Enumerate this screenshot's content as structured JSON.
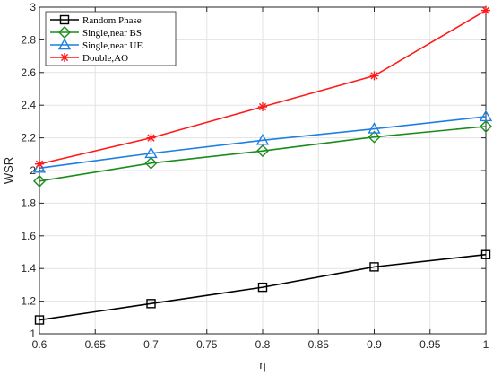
{
  "chart_data": {
    "type": "line",
    "title": "",
    "xlabel": "η",
    "ylabel": "WSR",
    "x": [
      0.6,
      0.7,
      0.8,
      0.9,
      1.0
    ],
    "xlim": [
      0.6,
      1.0
    ],
    "ylim": [
      1.0,
      3.0
    ],
    "x_ticks": [
      "0.6",
      "0.65",
      "0.7",
      "0.75",
      "0.8",
      "0.85",
      "0.9",
      "0.95",
      "1"
    ],
    "y_ticks": [
      "1",
      "1.2",
      "1.4",
      "1.6",
      "1.8",
      "2",
      "2.2",
      "2.4",
      "2.6",
      "2.8",
      "3"
    ],
    "grid": true,
    "legend_position": "top-left",
    "series": [
      {
        "name": "Random Phase",
        "color": "#000000",
        "marker": "square",
        "values": [
          1.085,
          1.185,
          1.285,
          1.41,
          1.485
        ]
      },
      {
        "name": "Single,near BS",
        "color": "#1a8c1a",
        "marker": "diamond",
        "values": [
          1.935,
          2.045,
          2.12,
          2.205,
          2.27
        ]
      },
      {
        "name": "Single,near UE",
        "color": "#1f7fe0",
        "marker": "triangle",
        "values": [
          2.015,
          2.105,
          2.185,
          2.255,
          2.33
        ]
      },
      {
        "name": "Double,AO",
        "color": "#ff1a1a",
        "marker": "asterisk",
        "values": [
          2.04,
          2.2,
          2.39,
          2.58,
          2.98
        ]
      }
    ]
  }
}
